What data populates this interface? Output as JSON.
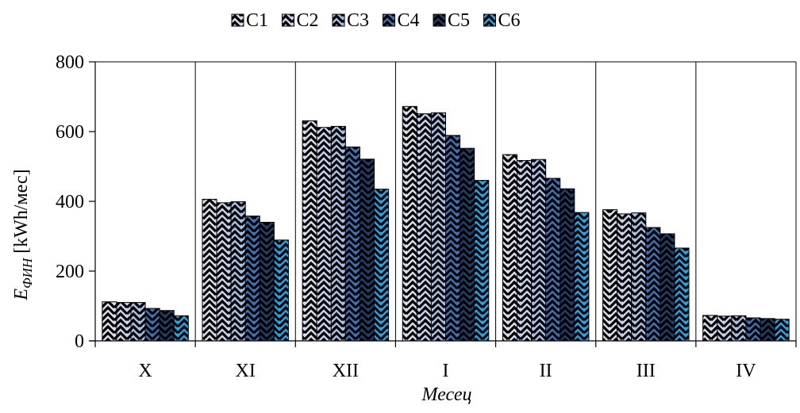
{
  "chart_data": {
    "type": "bar",
    "categories": [
      "X",
      "XI",
      "XII",
      "I",
      "II",
      "III",
      "IV"
    ],
    "series": [
      {
        "name": "C1",
        "color": "#d9dde8",
        "values": [
          112,
          406,
          631,
          672,
          534,
          376,
          73
        ]
      },
      {
        "name": "C2",
        "color": "#c6d3ea",
        "values": [
          110,
          396,
          612,
          651,
          517,
          364,
          71
        ]
      },
      {
        "name": "C3",
        "color": "#a7c0e2",
        "values": [
          110,
          399,
          615,
          654,
          520,
          367,
          72
        ]
      },
      {
        "name": "C4",
        "color": "#3f73b2",
        "values": [
          93,
          358,
          556,
          589,
          466,
          325,
          66
        ]
      },
      {
        "name": "C5",
        "color": "#233f66",
        "values": [
          87,
          340,
          521,
          552,
          436,
          307,
          64
        ]
      },
      {
        "name": "C6",
        "color": "#1ea8e6",
        "values": [
          72,
          289,
          435,
          460,
          368,
          266,
          62
        ]
      }
    ],
    "ylim": [
      0,
      800
    ],
    "yticks": [
      0,
      200,
      400,
      600,
      800
    ],
    "ylabel_main": "E",
    "ylabel_sub": "ФИН",
    "ylabel_unit": " [kWh/мес]",
    "xlabel": "Месец",
    "grid": "vertical separators between categories",
    "legend_position": "top",
    "pattern": "herringbone (black zigzag hatching)"
  }
}
